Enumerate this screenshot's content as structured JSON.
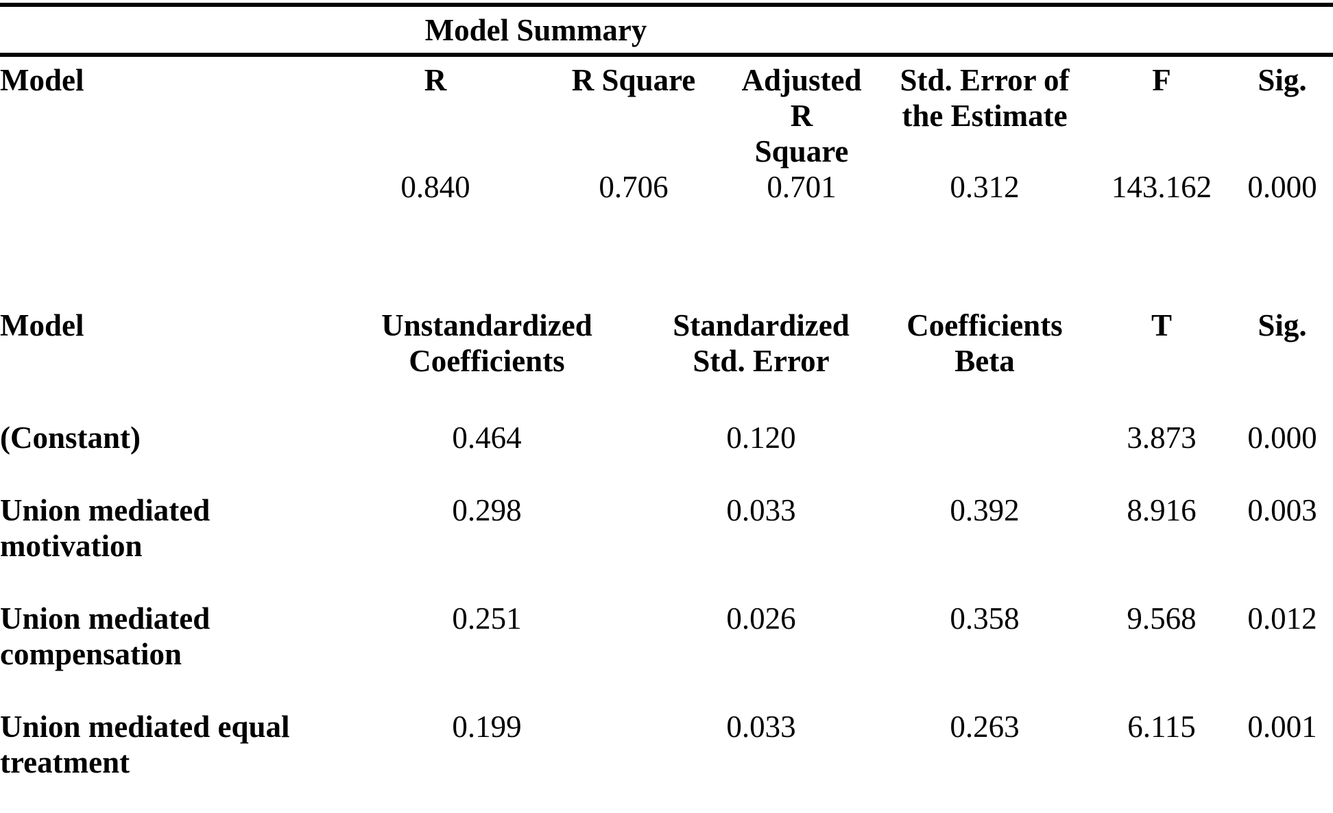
{
  "title": "Model Summary",
  "model_summary": {
    "headers": {
      "model": "Model",
      "r": "R",
      "r_square": "R Square",
      "adj_r_square_lines": [
        "Adjusted",
        "R",
        "Square"
      ],
      "std_error_lines": [
        "Std. Error of",
        "the Estimate"
      ],
      "f": "F",
      "sig": "Sig."
    },
    "values": {
      "r": "0.840",
      "r_square": "0.706",
      "adj_r_square": "0.701",
      "std_error": "0.312",
      "f": "143.162",
      "sig": "0.000"
    }
  },
  "coefficients": {
    "headers": {
      "model": "Model",
      "unstandardized_lines": [
        "Unstandardized",
        "Coefficients"
      ],
      "standardized_lines": [
        "Standardized",
        "Std. Error"
      ],
      "beta_lines": [
        "Coefficients",
        "Beta"
      ],
      "t": "T",
      "sig": "Sig."
    },
    "rows": [
      {
        "label_lines": [
          "(Constant)"
        ],
        "coefficient": "0.464",
        "std_error": "0.120",
        "beta": "",
        "t": "3.873",
        "sig": "0.000"
      },
      {
        "label_lines": [
          "Union mediated",
          "motivation"
        ],
        "coefficient": "0.298",
        "std_error": "0.033",
        "beta": "0.392",
        "t": "8.916",
        "sig": "0.003"
      },
      {
        "label_lines": [
          "Union mediated",
          "compensation"
        ],
        "coefficient": "0.251",
        "std_error": "0.026",
        "beta": "0.358",
        "t": "9.568",
        "sig": "0.012"
      },
      {
        "label_lines": [
          "Union mediated equal",
          "treatment"
        ],
        "coefficient": "0.199",
        "std_error": "0.033",
        "beta": "0.263",
        "t": "6.115",
        "sig": "0.001"
      }
    ]
  }
}
